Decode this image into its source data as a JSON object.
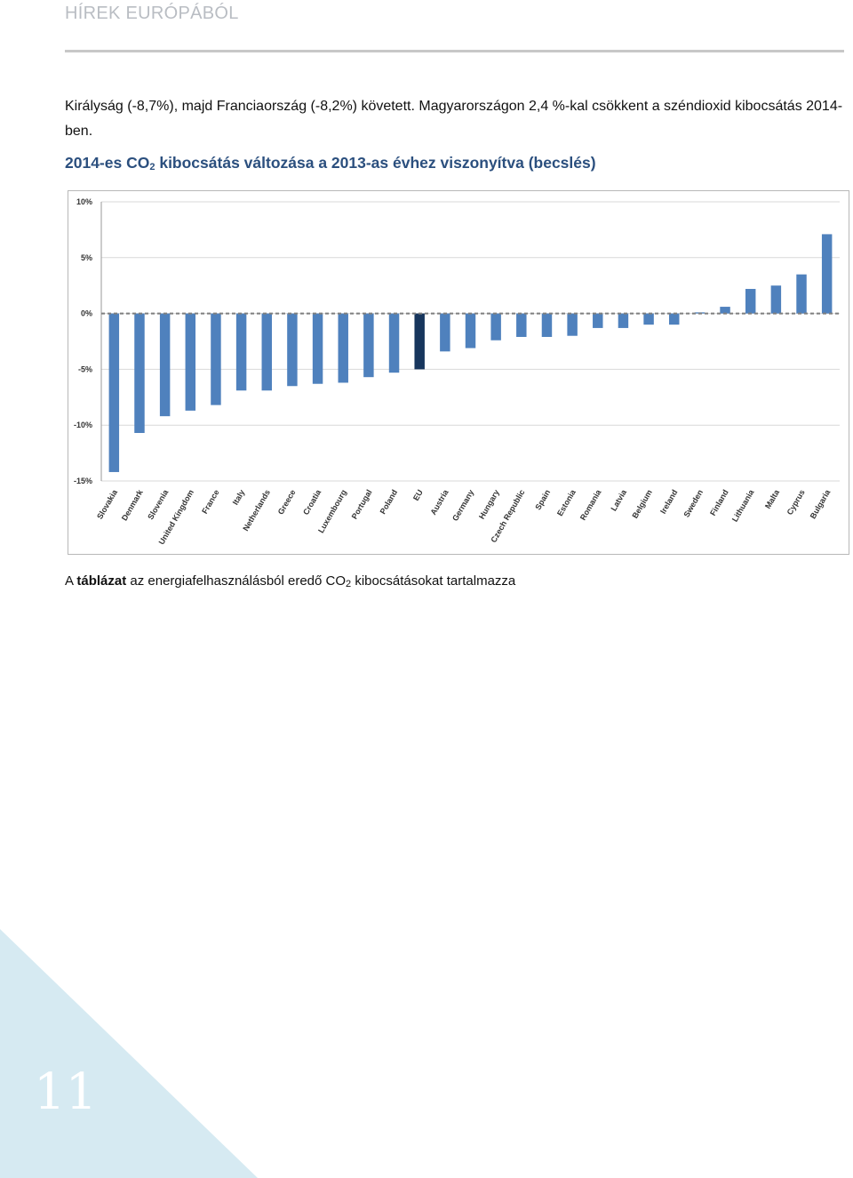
{
  "header": {
    "title": "HÍREK EURÓPÁBÓL"
  },
  "body_text": "Királyság (-8,7%), majd Franciaország (-8,2%) követett. Magyarországon 2,4 %-kal csökkent a széndioxid kibocsátás 2014-ben.",
  "chart_title": {
    "before": "2014-es CO",
    "sub": "2",
    "after": " kibocsátás változása a 2013-as évhez viszonyítva (becslés)"
  },
  "caption": {
    "prefix": "A ",
    "bold": "táblázat",
    "middle": " az energiafelhasználásból eredő CO",
    "sub": "2",
    "suffix": " kibocsátásokat tartalmazza"
  },
  "page_number": "11",
  "colors": {
    "bar": "#4f81bd",
    "bar_highlight": "#17365d",
    "corner": "#d6eaf2",
    "title": "#2b4f7e"
  },
  "chart_data": {
    "type": "bar",
    "categories": [
      "Slovakia",
      "Denmark",
      "Slovenia",
      "United Kingdom",
      "France",
      "Italy",
      "Netherlands",
      "Greece",
      "Croatia",
      "Luxembourg",
      "Portugal",
      "Poland",
      "EU",
      "Austria",
      "Germany",
      "Hungary",
      "Czech Republic",
      "Spain",
      "Estonia",
      "Romania",
      "Latvia",
      "Belgium",
      "Ireland",
      "Sweden",
      "Finland",
      "Lithuania",
      "Malta",
      "Cyprus",
      "Bulgaria"
    ],
    "values": [
      -14.2,
      -10.7,
      -9.2,
      -8.7,
      -8.2,
      -6.9,
      -6.9,
      -6.5,
      -6.3,
      -6.2,
      -5.7,
      -5.3,
      -5.0,
      -3.4,
      -3.1,
      -2.4,
      -2.1,
      -2.1,
      -2.0,
      -1.3,
      -1.3,
      -1.0,
      -1.0,
      0.1,
      0.6,
      2.2,
      2.5,
      3.5,
      7.1
    ],
    "highlight": "EU",
    "ytick_labels": [
      "10%",
      "5%",
      "0%",
      "-5%",
      "-10%",
      "-15%"
    ],
    "ytick_values": [
      10,
      5,
      0,
      -5,
      -10,
      -15
    ],
    "ylim": [
      -15,
      10
    ],
    "grid": true,
    "legend": "none"
  }
}
